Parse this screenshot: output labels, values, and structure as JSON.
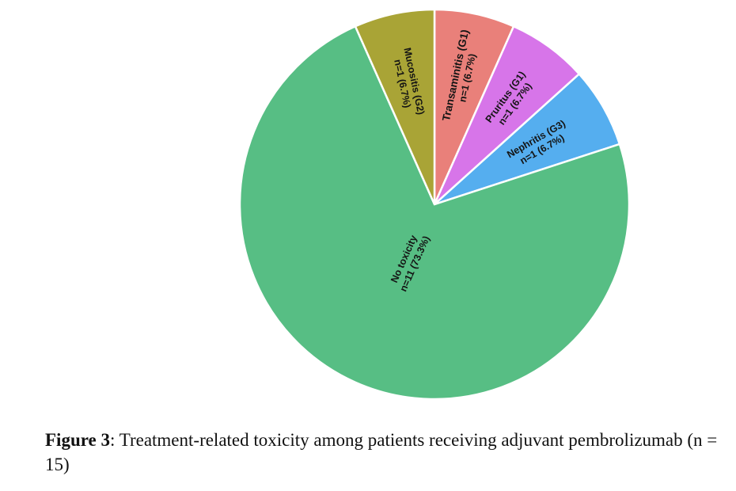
{
  "chart_data": {
    "type": "pie",
    "slices": [
      {
        "label": "Transaminitis (G1)",
        "value_label": "n=1 (6.7%)",
        "value": 1,
        "percent": 6.7,
        "color": "#E9807A"
      },
      {
        "label": "Pruritus (G1)",
        "value_label": "n=1 (6.7%)",
        "value": 1,
        "percent": 6.7,
        "color": "#D775E9"
      },
      {
        "label": "Nephritis (G3)",
        "value_label": "n=1 (6.7%)",
        "value": 1,
        "percent": 6.7,
        "color": "#55AEEF"
      },
      {
        "label": "No toxicity",
        "value_label": "n=11 (73.3%)",
        "value": 11,
        "percent": 73.3,
        "color": "#57BE84"
      },
      {
        "label": "Mucositis (G2)",
        "value_label": "n=1 (6.7%)",
        "value": 1,
        "percent": 6.7,
        "color": "#A9A436"
      }
    ],
    "title": "",
    "legend": "none"
  },
  "caption": {
    "figure_label": "Figure 3",
    "text": ": Treatment-related toxicity among patients receiving adjuvant pembrolizumab (n = 15)"
  }
}
